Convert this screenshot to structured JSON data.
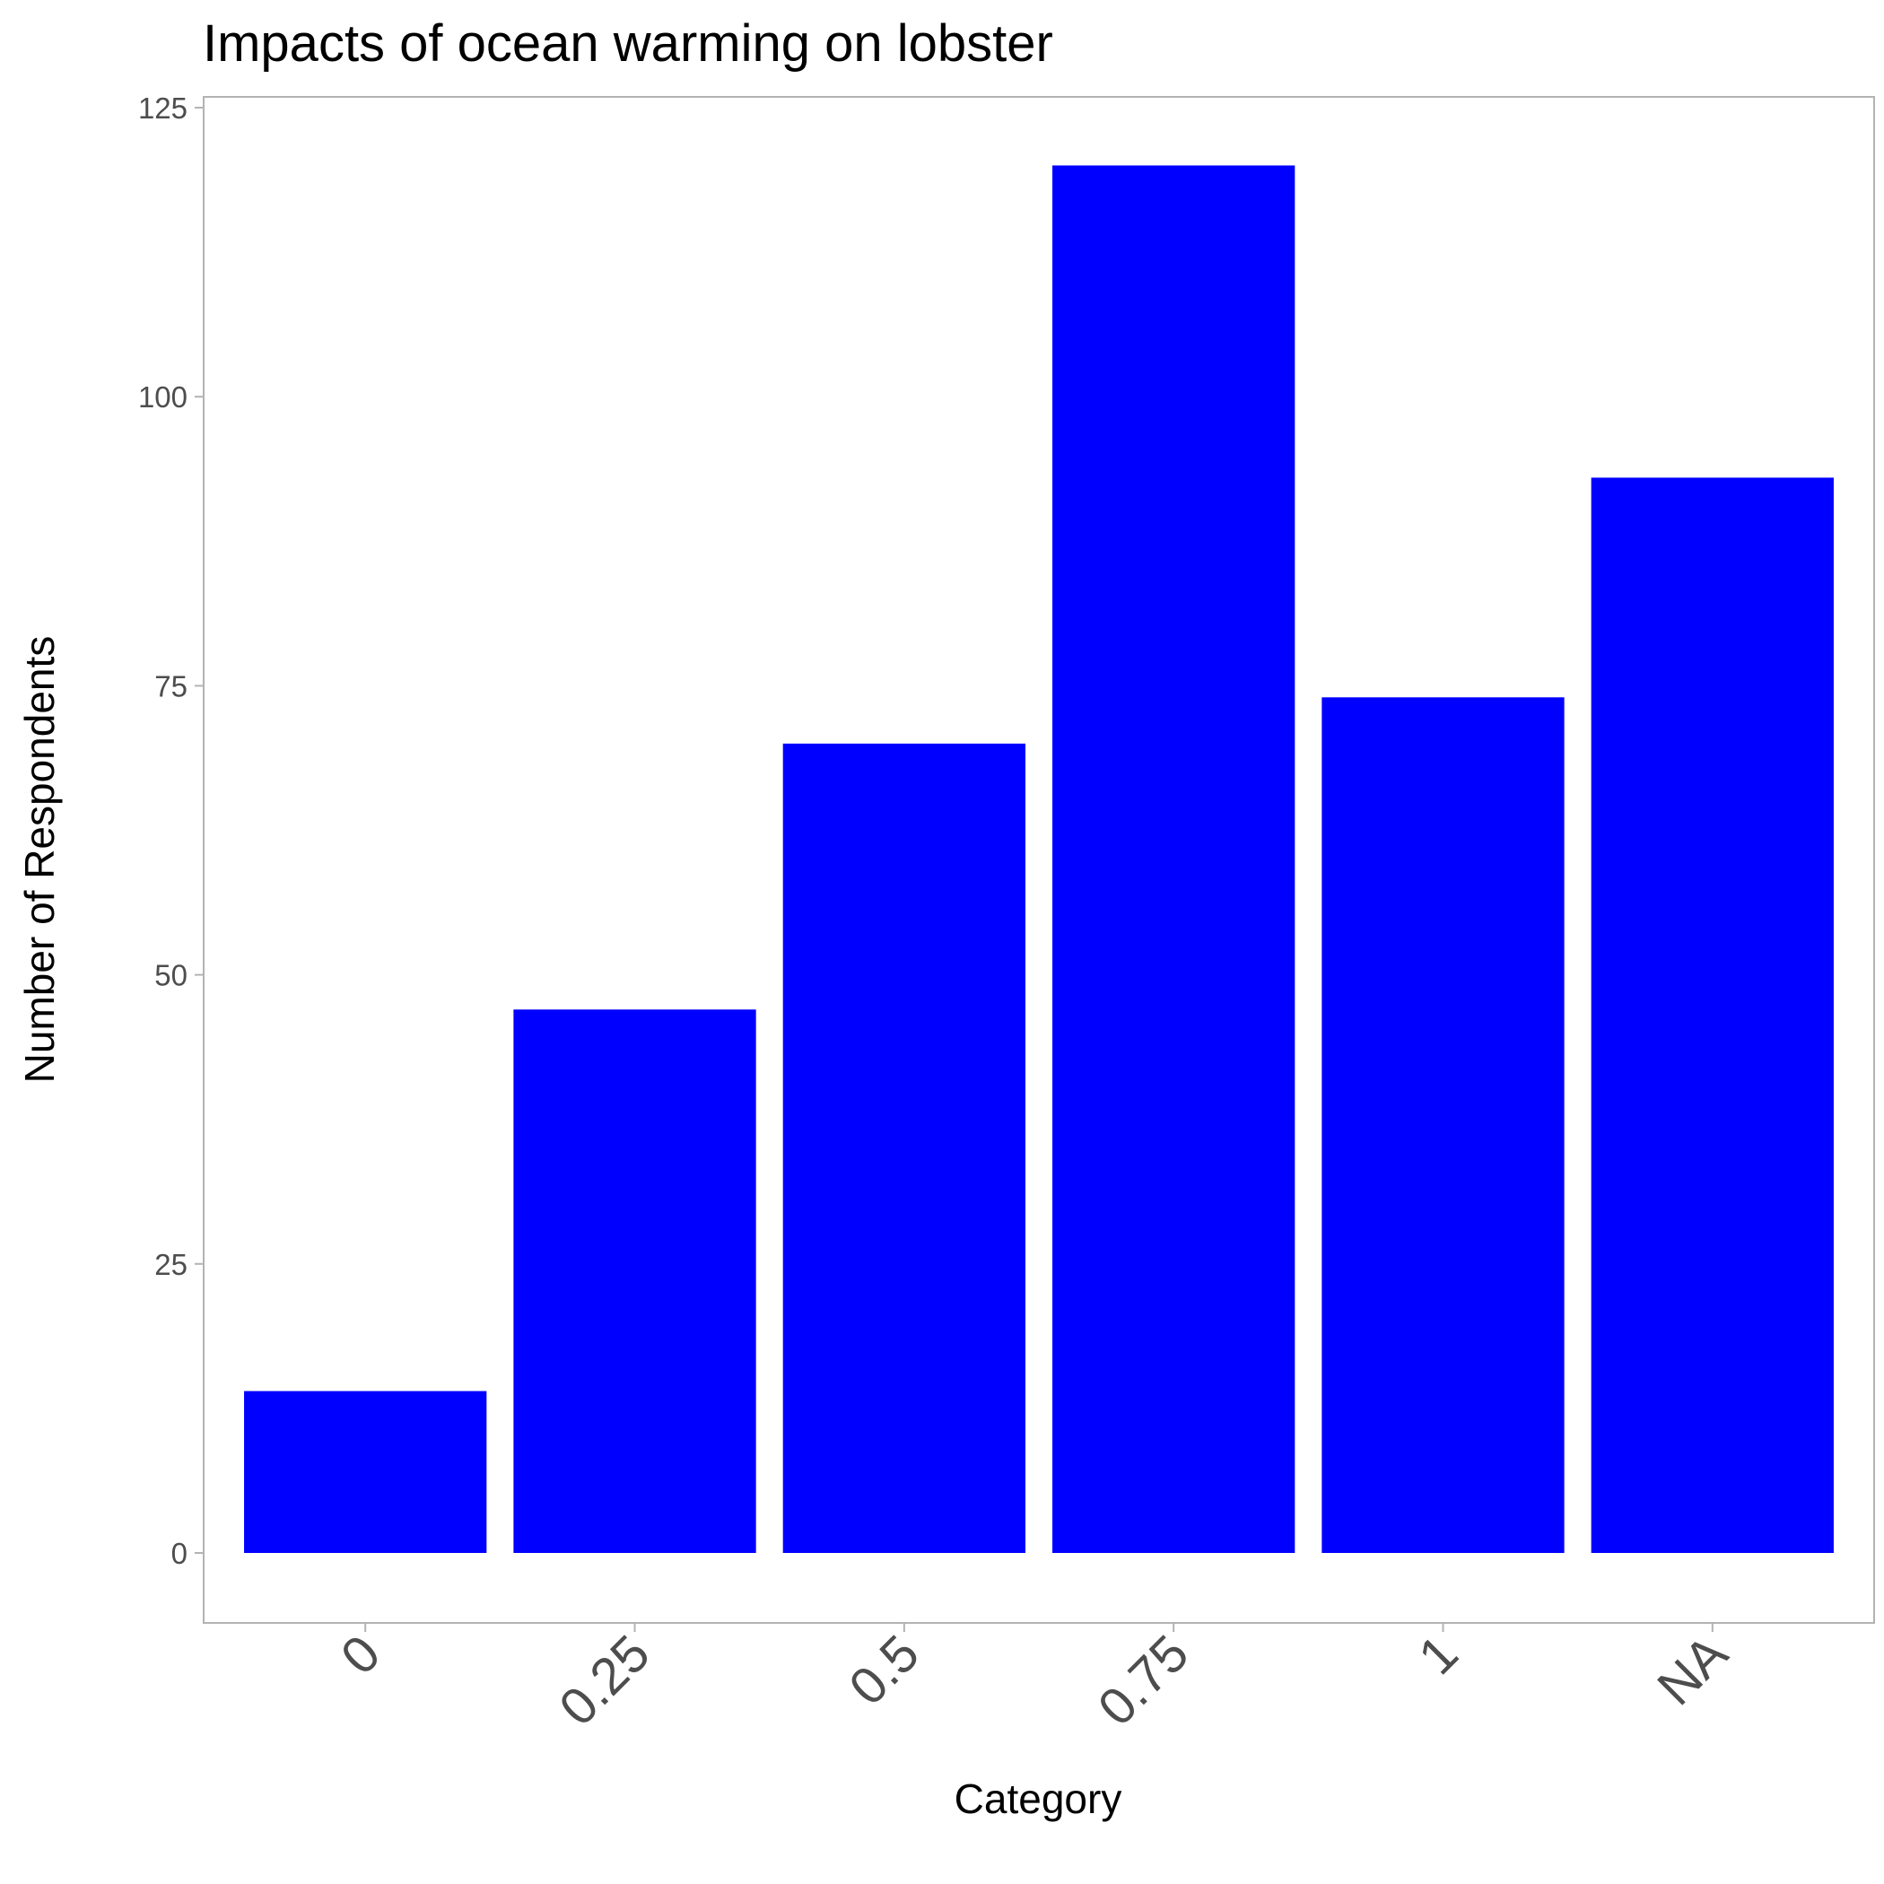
{
  "chart_data": {
    "type": "bar",
    "title": "Impacts of ocean warming on lobster",
    "xlabel": "Category",
    "ylabel": "Number of Respondents",
    "categories": [
      "0",
      "0.25",
      "0.5",
      "0.75",
      "1",
      "NA"
    ],
    "values": [
      14,
      47,
      70,
      120,
      74,
      93
    ],
    "ylim": [
      -6,
      125
    ],
    "yticks": [
      0,
      25,
      50,
      75,
      100,
      125
    ],
    "bar_color": "#0000ff",
    "grid": false,
    "legend": "none"
  }
}
